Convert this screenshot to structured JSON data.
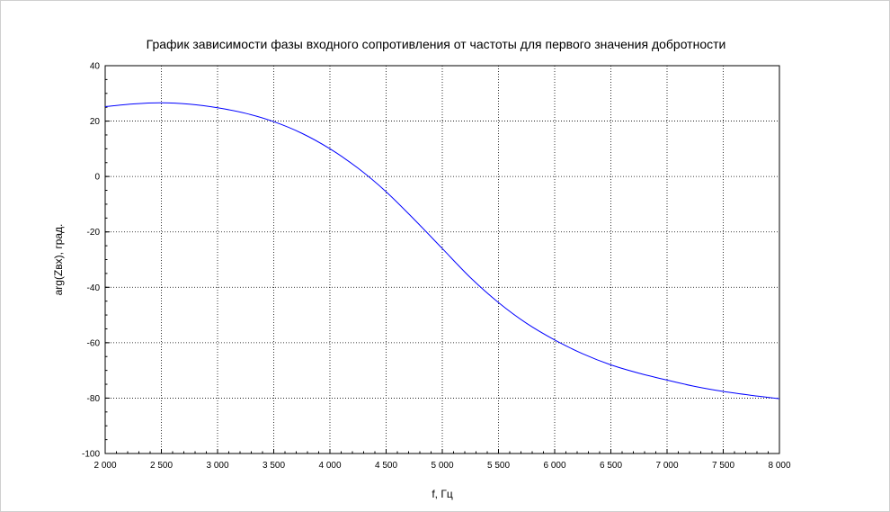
{
  "chart_data": {
    "type": "line",
    "title": "График зависимости фазы входного сопротивления от частоты для первого значения добротности",
    "xlabel": "f, Гц",
    "ylabel": "arg(Zвх), град.",
    "xlim": [
      2000,
      8000
    ],
    "ylim": [
      -100,
      40
    ],
    "xticks": [
      2000,
      2500,
      3000,
      3500,
      4000,
      4500,
      5000,
      5500,
      6000,
      6500,
      7000,
      7500,
      8000
    ],
    "xtick_labels": [
      "2 000",
      "2 500",
      "3 000",
      "3 500",
      "4 000",
      "4 500",
      "5 000",
      "5 500",
      "6 000",
      "6 500",
      "7 000",
      "7 500",
      "8 000"
    ],
    "yticks": [
      -100,
      -80,
      -60,
      -40,
      -20,
      0,
      20,
      40
    ],
    "ytick_labels": [
      "-100",
      "-80",
      "-60",
      "-40",
      "-20",
      "0",
      "20",
      "40"
    ],
    "grid": true,
    "series": [
      {
        "color": "#0000ff",
        "x": [
          2000,
          2250,
          2500,
          2750,
          3000,
          3250,
          3500,
          3750,
          4000,
          4250,
          4500,
          4750,
          5000,
          5250,
          5500,
          5750,
          6000,
          6250,
          6500,
          6750,
          7000,
          7250,
          7500,
          7750,
          8000
        ],
        "y": [
          25.2,
          26.2,
          26.6,
          26.1,
          24.8,
          22.8,
          19.8,
          15.6,
          10.0,
          3.0,
          -5.5,
          -15.5,
          -26.0,
          -36.5,
          -45.5,
          -53.0,
          -59.0,
          -64.0,
          -68.0,
          -71.0,
          -73.5,
          -75.8,
          -77.6,
          -79.0,
          -80.2
        ]
      }
    ]
  }
}
